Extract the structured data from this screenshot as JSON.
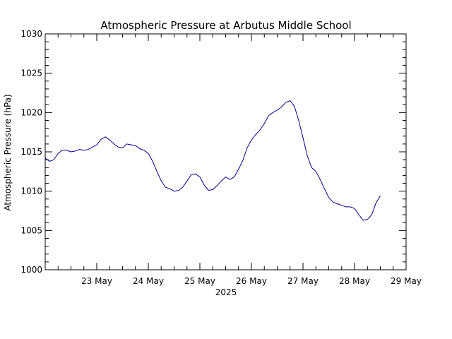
{
  "chart_data": {
    "type": "line",
    "title": "Atmospheric Pressure at Arbutus Middle School",
    "ylabel": "Atmospheric Pressure (hPa)",
    "xlabel": "2025",
    "x_range": [
      "2025-05-22 00:00",
      "2025-05-29 00:00"
    ],
    "ylim": [
      1000,
      1030
    ],
    "y_ticks": [
      1000,
      1005,
      1010,
      1015,
      1020,
      1025,
      1030
    ],
    "x_ticks": [
      {
        "date": "2025-05-23",
        "label": "23 May"
      },
      {
        "date": "2025-05-24",
        "label": "24 May"
      },
      {
        "date": "2025-05-25",
        "label": "25 May"
      },
      {
        "date": "2025-05-26",
        "label": "26 May"
      },
      {
        "date": "2025-05-27",
        "label": "27 May"
      },
      {
        "date": "2025-05-28",
        "label": "28 May"
      },
      {
        "date": "2025-05-29",
        "label": "29 May"
      }
    ],
    "line_color": "#00008b",
    "grid": false,
    "series": [
      {
        "points": [
          [
            "2025-05-22 00:00",
            1014.2
          ],
          [
            "2025-05-22 02:00",
            1013.8
          ],
          [
            "2025-05-22 04:00",
            1014.0
          ],
          [
            "2025-05-22 06:00",
            1014.8
          ],
          [
            "2025-05-22 08:00",
            1015.2
          ],
          [
            "2025-05-22 10:00",
            1015.2
          ],
          [
            "2025-05-22 12:00",
            1015.0
          ],
          [
            "2025-05-22 14:00",
            1015.1
          ],
          [
            "2025-05-22 16:00",
            1015.3
          ],
          [
            "2025-05-22 18:00",
            1015.2
          ],
          [
            "2025-05-22 20:00",
            1015.3
          ],
          [
            "2025-05-22 22:00",
            1015.6
          ],
          [
            "2025-05-23 00:00",
            1015.9
          ],
          [
            "2025-05-23 02:00",
            1016.6
          ],
          [
            "2025-05-23 04:00",
            1016.9
          ],
          [
            "2025-05-23 06:00",
            1016.5
          ],
          [
            "2025-05-23 08:00",
            1016.0
          ],
          [
            "2025-05-23 10:00",
            1015.6
          ],
          [
            "2025-05-23 12:00",
            1015.5
          ],
          [
            "2025-05-23 14:00",
            1016.0
          ],
          [
            "2025-05-23 16:00",
            1015.9
          ],
          [
            "2025-05-23 18:00",
            1015.8
          ],
          [
            "2025-05-23 20:00",
            1015.4
          ],
          [
            "2025-05-23 22:00",
            1015.2
          ],
          [
            "2025-05-24 00:00",
            1014.8
          ],
          [
            "2025-05-24 02:00",
            1013.8
          ],
          [
            "2025-05-24 04:00",
            1012.5
          ],
          [
            "2025-05-24 06:00",
            1011.3
          ],
          [
            "2025-05-24 08:00",
            1010.5
          ],
          [
            "2025-05-24 10:00",
            1010.3
          ],
          [
            "2025-05-24 12:00",
            1010.0
          ],
          [
            "2025-05-24 14:00",
            1010.1
          ],
          [
            "2025-05-24 16:00",
            1010.5
          ],
          [
            "2025-05-24 18:00",
            1011.3
          ],
          [
            "2025-05-24 20:00",
            1012.1
          ],
          [
            "2025-05-24 22:00",
            1012.2
          ],
          [
            "2025-05-25 00:00",
            1011.8
          ],
          [
            "2025-05-25 02:00",
            1010.8
          ],
          [
            "2025-05-25 04:00",
            1010.1
          ],
          [
            "2025-05-25 06:00",
            1010.2
          ],
          [
            "2025-05-25 08:00",
            1010.7
          ],
          [
            "2025-05-25 10:00",
            1011.3
          ],
          [
            "2025-05-25 12:00",
            1011.8
          ],
          [
            "2025-05-25 14:00",
            1011.5
          ],
          [
            "2025-05-25 16:00",
            1011.8
          ],
          [
            "2025-05-25 18:00",
            1012.8
          ],
          [
            "2025-05-25 20:00",
            1013.9
          ],
          [
            "2025-05-25 22:00",
            1015.5
          ],
          [
            "2025-05-26 00:00",
            1016.5
          ],
          [
            "2025-05-26 02:00",
            1017.2
          ],
          [
            "2025-05-26 04:00",
            1017.8
          ],
          [
            "2025-05-26 06:00",
            1018.6
          ],
          [
            "2025-05-26 08:00",
            1019.6
          ],
          [
            "2025-05-26 10:00",
            1020.0
          ],
          [
            "2025-05-26 12:00",
            1020.3
          ],
          [
            "2025-05-26 14:00",
            1020.7
          ],
          [
            "2025-05-26 16:00",
            1021.3
          ],
          [
            "2025-05-26 18:00",
            1021.5
          ],
          [
            "2025-05-26 20:00",
            1020.8
          ],
          [
            "2025-05-26 22:00",
            1019.0
          ],
          [
            "2025-05-27 00:00",
            1016.8
          ],
          [
            "2025-05-27 02:00",
            1014.5
          ],
          [
            "2025-05-27 04:00",
            1013.0
          ],
          [
            "2025-05-27 06:00",
            1012.5
          ],
          [
            "2025-05-27 08:00",
            1011.5
          ],
          [
            "2025-05-27 10:00",
            1010.3
          ],
          [
            "2025-05-27 12:00",
            1009.2
          ],
          [
            "2025-05-27 14:00",
            1008.6
          ],
          [
            "2025-05-27 16:00",
            1008.4
          ],
          [
            "2025-05-27 18:00",
            1008.2
          ],
          [
            "2025-05-27 20:00",
            1008.0
          ],
          [
            "2025-05-27 22:00",
            1008.0
          ],
          [
            "2025-05-28 00:00",
            1007.8
          ],
          [
            "2025-05-28 02:00",
            1007.0
          ],
          [
            "2025-05-28 04:00",
            1006.3
          ],
          [
            "2025-05-28 06:00",
            1006.4
          ],
          [
            "2025-05-28 08:00",
            1007.0
          ],
          [
            "2025-05-28 10:00",
            1008.5
          ],
          [
            "2025-05-28 12:00",
            1009.4
          ]
        ]
      }
    ]
  }
}
